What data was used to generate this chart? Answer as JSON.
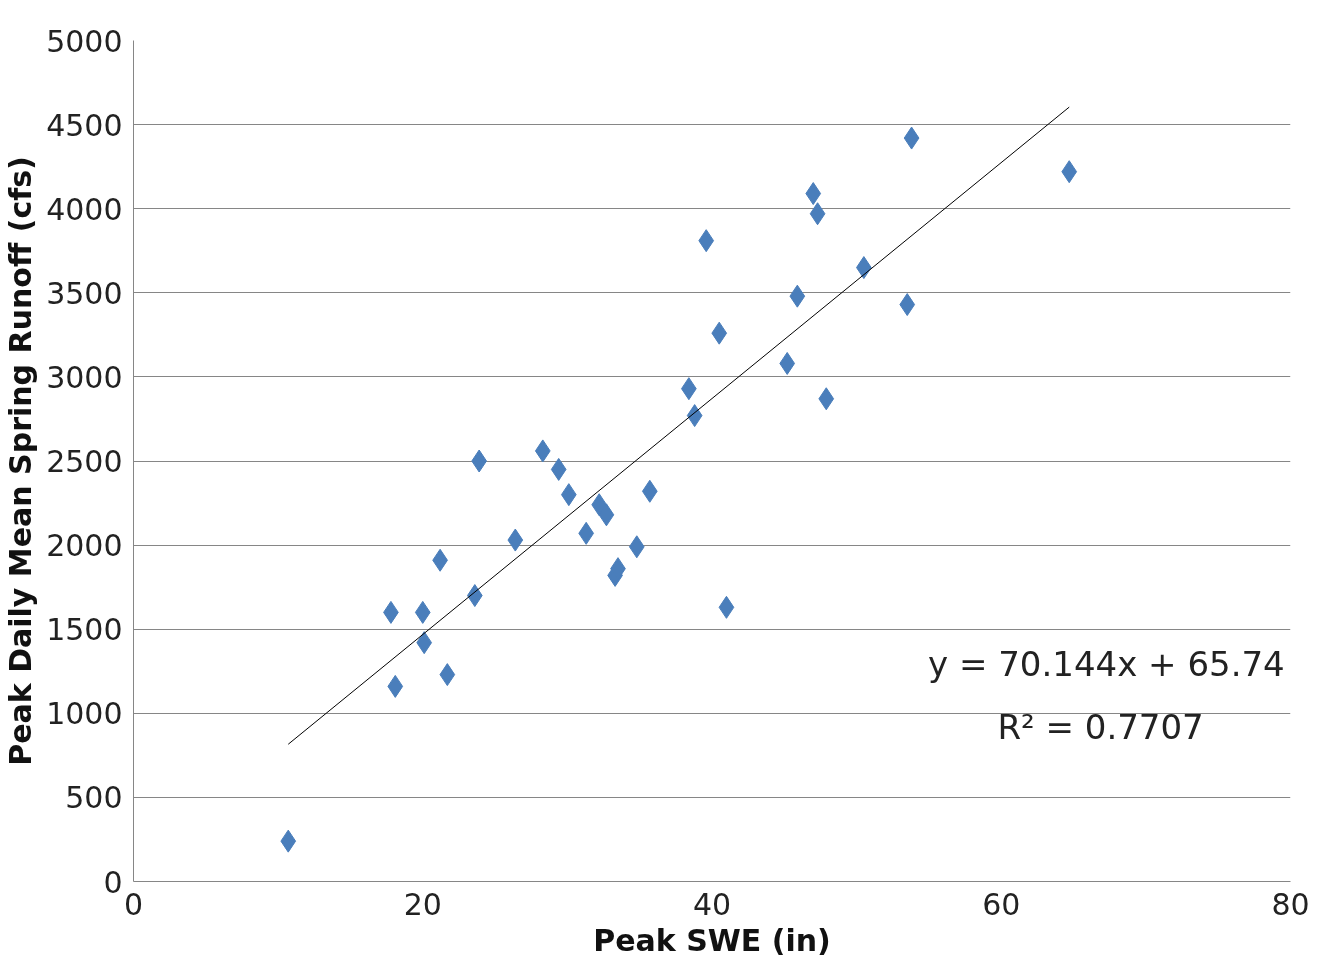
{
  "chart_data": {
    "type": "scatter",
    "xlabel": "Peak SWE (in)",
    "ylabel": "Peak Daily Mean Spring Runoff (cfs)",
    "xlim": [
      0,
      80
    ],
    "xticks": [
      0,
      20,
      40,
      60,
      80
    ],
    "ylim": [
      0,
      5000
    ],
    "yticks": [
      0,
      500,
      1000,
      1500,
      2000,
      2500,
      3000,
      3500,
      4000,
      4500,
      5000
    ],
    "grid": "y",
    "series": [
      {
        "color": "#4a7ebb",
        "marker": "diamond",
        "x": [
          10.7,
          17.8,
          18.1,
          20.0,
          20.1,
          21.2,
          21.7,
          23.6,
          23.9,
          26.4,
          28.3,
          29.4,
          30.1,
          31.3,
          32.2,
          32.7,
          33.3,
          33.5,
          34.8,
          35.7,
          38.4,
          38.8,
          39.6,
          40.5,
          41.0,
          45.2,
          45.9,
          47.0,
          47.3,
          47.9,
          50.5,
          53.5,
          53.8,
          64.7
        ],
        "values": [
          240,
          1600,
          1160,
          1600,
          1420,
          1910,
          1230,
          1700,
          2500,
          2030,
          2560,
          2450,
          2300,
          2070,
          2240,
          2180,
          1820,
          1860,
          1990,
          2320,
          2930,
          2770,
          3810,
          3260,
          1630,
          3080,
          3480,
          4090,
          3970,
          2870,
          3650,
          3430,
          4420,
          4220
        ]
      },
      {
        "type": "line",
        "marker": "none",
        "color": "#000000",
        "line_style": "solid",
        "x": [
          10.7,
          64.7
        ],
        "values": [
          816,
          4604
        ]
      }
    ],
    "annotations": [
      "y = 70.144x + 65.74",
      "R² = 0.7707"
    ]
  }
}
